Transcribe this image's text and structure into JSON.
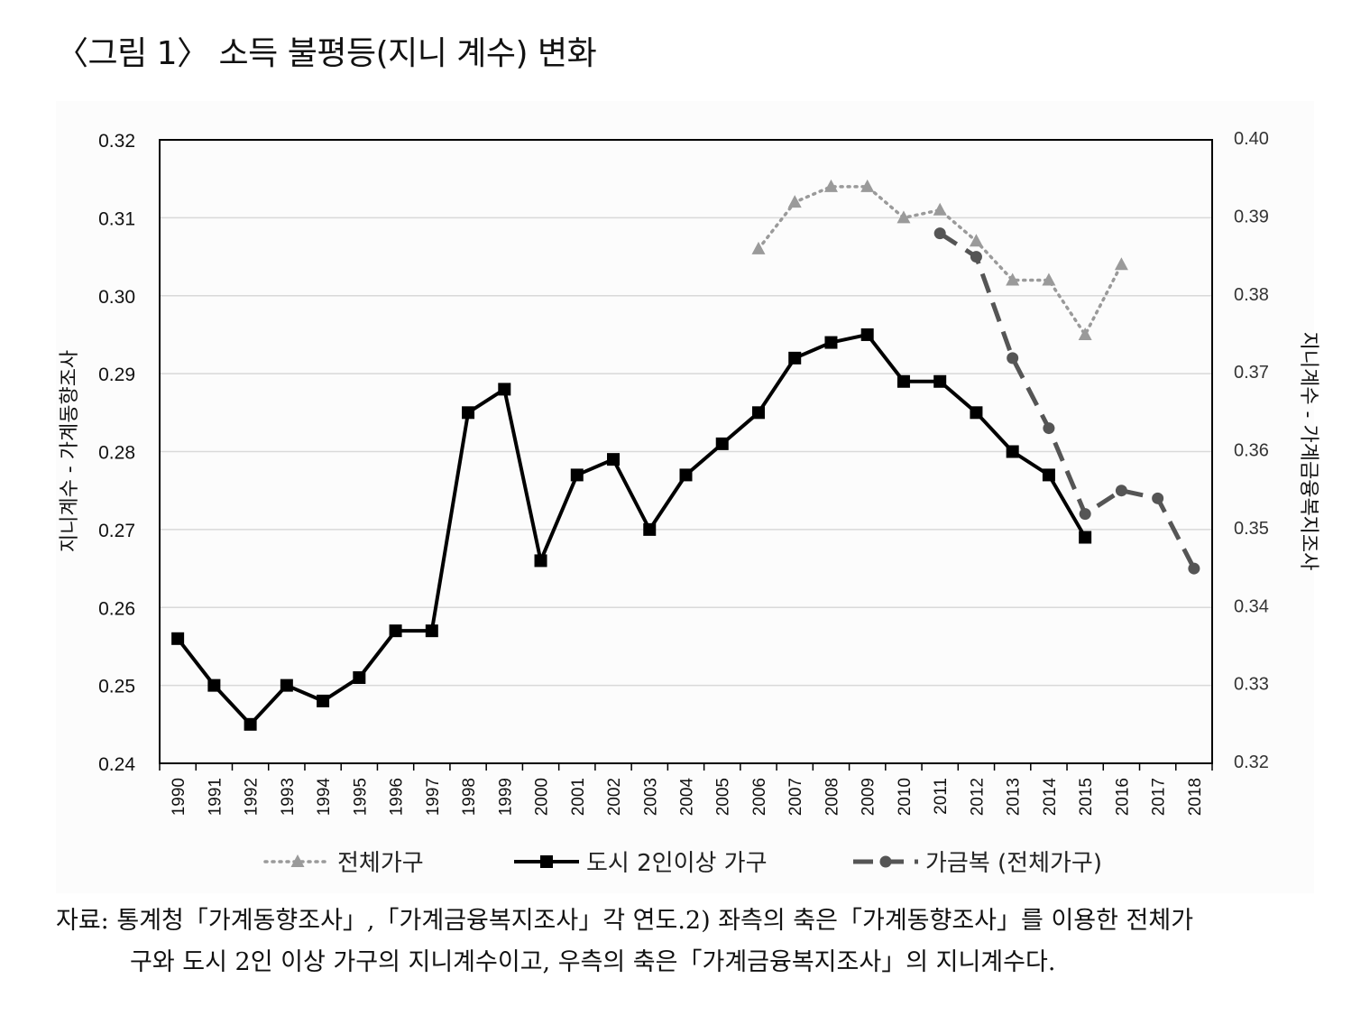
{
  "title": "〈그림 1〉 소득 불평등(지니 계수) 변화",
  "chart_data": {
    "type": "line",
    "x": [
      1990,
      1991,
      1992,
      1993,
      1994,
      1995,
      1996,
      1997,
      1998,
      1999,
      2000,
      2001,
      2002,
      2003,
      2004,
      2005,
      2006,
      2007,
      2008,
      2009,
      2010,
      2011,
      2012,
      2013,
      2014,
      2015,
      2016,
      2017,
      2018
    ],
    "x_tick_labels": [
      "1990",
      "1991",
      "1992",
      "1993",
      "1994",
      "1995",
      "1996",
      "1997",
      "1998",
      "1999",
      "2000",
      "2001",
      "2002",
      "2003",
      "2004",
      "2005",
      "2006",
      "2007",
      "2008",
      "2009",
      "2010",
      "2011",
      "2012",
      "2013",
      "2014",
      "2015",
      "2016",
      "2017",
      "2018"
    ],
    "ylabel_left": "지니계수 - 가계동향조사",
    "ylabel_right": "지니계수 - 가계금융복지조사",
    "ylim_left": [
      0.24,
      0.32
    ],
    "ylim_right": [
      0.32,
      0.4
    ],
    "yticks_left": [
      "0.24",
      "0.25",
      "0.26",
      "0.27",
      "0.28",
      "0.29",
      "0.30",
      "0.31",
      "0.32"
    ],
    "yticks_right": [
      "0.32",
      "0.33",
      "0.34",
      "0.35",
      "0.36",
      "0.37",
      "0.38",
      "0.39",
      "0.40"
    ],
    "grid": true,
    "legend_position": "bottom",
    "series": [
      {
        "name": "전체가구",
        "axis": "left",
        "style": "dotted",
        "marker": "triangle",
        "color": "#9a9a9a",
        "x": [
          2006,
          2007,
          2008,
          2009,
          2010,
          2011,
          2012,
          2013,
          2014,
          2015,
          2016
        ],
        "values": [
          0.306,
          0.312,
          0.314,
          0.314,
          0.31,
          0.311,
          0.307,
          0.302,
          0.302,
          0.295,
          0.304
        ]
      },
      {
        "name": "도시 2인이상 가구",
        "axis": "left",
        "style": "solid",
        "marker": "square",
        "color": "#000000",
        "x": [
          1990,
          1991,
          1992,
          1993,
          1994,
          1995,
          1996,
          1997,
          1998,
          1999,
          2000,
          2001,
          2002,
          2003,
          2004,
          2005,
          2006,
          2007,
          2008,
          2009,
          2010,
          2011,
          2012,
          2013,
          2014,
          2015
        ],
        "values": [
          0.256,
          0.25,
          0.245,
          0.25,
          0.248,
          0.251,
          0.257,
          0.257,
          0.285,
          0.288,
          0.266,
          0.277,
          0.279,
          0.27,
          0.277,
          0.281,
          0.285,
          0.292,
          0.294,
          0.295,
          0.289,
          0.289,
          0.285,
          0.28,
          0.277,
          0.269
        ]
      },
      {
        "name": "가금복 (전체가구)",
        "axis": "right",
        "style": "dashed",
        "marker": "circle",
        "color": "#555555",
        "x": [
          2011,
          2012,
          2013,
          2014,
          2015,
          2016,
          2017,
          2018
        ],
        "values": [
          0.388,
          0.385,
          0.372,
          0.363,
          0.352,
          0.355,
          0.354,
          0.345
        ]
      }
    ]
  },
  "source_note": {
    "line1": "자료: 통계청「가계동향조사」,「가계금융복지조사」각 연도.2) 좌측의 축은「가계동향조사」를 이용한 전체가",
    "line2": "구와 도시 2인 이상 가구의 지니계수이고, 우측의 축은「가계금융복지조사」의 지니계수다."
  }
}
